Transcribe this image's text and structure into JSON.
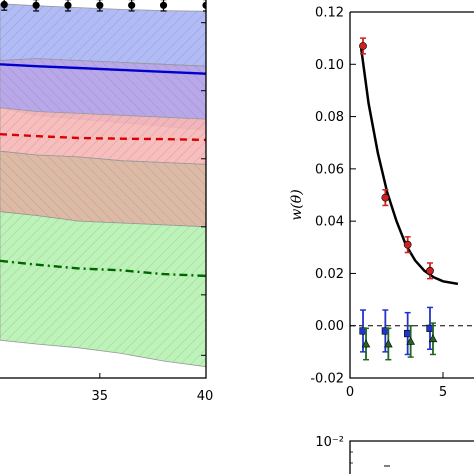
{
  "chart_data": [
    {
      "type": "line",
      "panel": "left (cropped)",
      "xlabel": "",
      "ylabel": "",
      "xlim": [
        30.3,
        40
      ],
      "x_ticks": [
        "35",
        "40"
      ],
      "x": [
        30.3,
        32,
        34,
        36,
        38,
        40
      ],
      "bands": [
        {
          "color": "#a8b4f5",
          "upper": [
            0.99,
            0.985,
            0.98,
            0.975,
            0.972,
            0.97
          ],
          "lower": [
            0.84,
            0.845,
            0.84,
            0.835,
            0.83,
            0.825
          ]
        },
        {
          "color": "#b09ee8",
          "upper": [
            0.84,
            0.845,
            0.84,
            0.835,
            0.83,
            0.825
          ],
          "lower": [
            0.715,
            0.695,
            0.685,
            0.675,
            0.665,
            0.655
          ]
        },
        {
          "color": "#f7b6b6",
          "upper": [
            0.715,
            0.705,
            0.7,
            0.695,
            0.69,
            0.685
          ],
          "lower": [
            0.6,
            0.59,
            0.585,
            0.575,
            0.57,
            0.565
          ]
        },
        {
          "color": "#d9b39b",
          "upper": [
            0.6,
            0.59,
            0.585,
            0.575,
            0.57,
            0.565
          ],
          "lower": [
            0.44,
            0.43,
            0.415,
            0.41,
            0.405,
            0.4
          ]
        },
        {
          "color": "#b6f2b0",
          "upper": [
            0.44,
            0.43,
            0.415,
            0.41,
            0.405,
            0.4
          ],
          "lower": [
            0.1,
            0.09,
            0.08,
            0.065,
            0.045,
            0.03
          ]
        }
      ],
      "lines": [
        {
          "color": "#0000cc",
          "style": "solid",
          "y": [
            0.83,
            0.825,
            0.82,
            0.815,
            0.81,
            0.805
          ]
        },
        {
          "color": "#dd0000",
          "style": "dashed",
          "y": [
            0.645,
            0.64,
            0.635,
            0.633,
            0.632,
            0.63
          ]
        },
        {
          "color": "#006600",
          "style": "dashdot",
          "y": [
            0.31,
            0.3,
            0.29,
            0.285,
            0.275,
            0.27
          ]
        }
      ],
      "points": {
        "color": "#000000",
        "x": [
          30.5,
          32,
          33.5,
          35,
          36.5,
          38,
          40
        ],
        "y": [
          0.988,
          0.986,
          0.986,
          0.986,
          0.986,
          0.986,
          0.986
        ],
        "err": 0.015
      }
    },
    {
      "type": "line",
      "panel": "right (cropped)",
      "xlabel": "",
      "ylabel": "w(θ)",
      "ylim": [
        -0.02,
        0.12
      ],
      "xlim": [
        0,
        6
      ],
      "y_ticks": [
        "0.12",
        "0.10",
        "0.08",
        "0.06",
        "0.04",
        "0.02",
        "0.00",
        "-0.02"
      ],
      "x_ticks": [
        "0",
        "5"
      ],
      "model_line": {
        "color": "#000000",
        "x": [
          0.6,
          1.0,
          1.5,
          2.0,
          2.5,
          3.0,
          3.5,
          4.0,
          4.5,
          5.0,
          5.8
        ],
        "y": [
          0.106,
          0.085,
          0.066,
          0.051,
          0.04,
          0.031,
          0.025,
          0.021,
          0.0185,
          0.017,
          0.016
        ]
      },
      "zero_line": {
        "style": "dashed",
        "y": 0
      },
      "series": [
        {
          "marker": "circle",
          "color": "#cc2222",
          "x": [
            0.7,
            1.9,
            3.1,
            4.3
          ],
          "y": [
            0.107,
            0.049,
            0.031,
            0.021
          ],
          "err": [
            0.003,
            0.003,
            0.003,
            0.003
          ]
        },
        {
          "marker": "square",
          "color": "#2233cc",
          "x": [
            0.7,
            1.9,
            3.1,
            4.3
          ],
          "y": [
            -0.002,
            -0.002,
            -0.003,
            -0.001
          ],
          "err": [
            0.008,
            0.008,
            0.008,
            0.008
          ]
        },
        {
          "marker": "triangle",
          "color": "#226622",
          "x": [
            0.7,
            1.9,
            3.1,
            4.3
          ],
          "y": [
            -0.007,
            -0.007,
            -0.006,
            -0.005
          ],
          "err": [
            0.006,
            0.006,
            0.006,
            0.006
          ]
        }
      ]
    },
    {
      "type": "line",
      "panel": "bottom-right (cropped)",
      "y_ticks": [
        "10⁻²"
      ]
    }
  ]
}
